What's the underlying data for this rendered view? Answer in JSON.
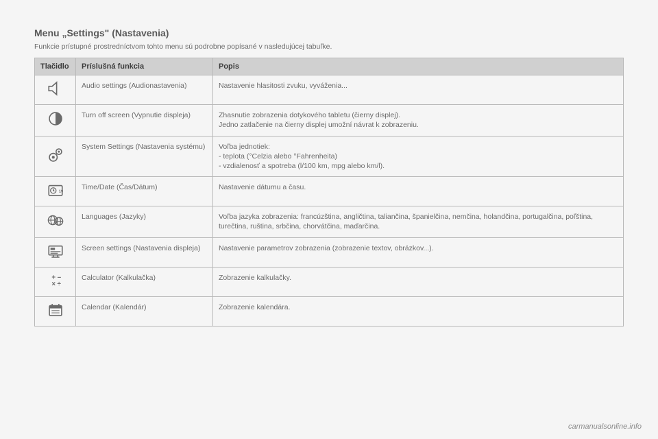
{
  "title": "Menu „Settings\" (Nastavenia)",
  "subtitle": "Funkcie prístupné prostredníctvom tohto menu sú podrobne popísané v nasledujúcej tabuľke.",
  "columns": {
    "c1": "Tlačidlo",
    "c2": "Príslušná funkcia",
    "c3": "Popis"
  },
  "rows": [
    {
      "icon": "speaker",
      "func": "Audio settings (Audionastavenia)",
      "desc": "Nastavenie hlasitosti zvuku, vyváženia..."
    },
    {
      "icon": "contrast",
      "func": "Turn off screen (Vypnutie displeja)",
      "desc": "Zhasnutie zobrazenia dotykového tabletu (čierny displej).\nJedno zatlačenie na čierny displej umožní návrat k zobrazeniu."
    },
    {
      "icon": "gears",
      "func": "System Settings (Nastavenia systému)",
      "desc_pre": "Voľba jednotiek:",
      "desc_items": [
        "teplota (°Celzia alebo °Fahrenheita)",
        "vzdialenosť a spotreba (l/100 km, mpg alebo km/l)."
      ]
    },
    {
      "icon": "time",
      "func": "Time/Date (Čas/Dátum)",
      "desc": "Nastavenie dátumu a času."
    },
    {
      "icon": "globe",
      "func": "Languages (Jazyky)",
      "desc": "Voľba jazyka zobrazenia: francúzština, angličtina, taliančina, španielčina, nemčina, holandčina, portugalčina, poľština, turečtina, ruština, srbčina, chorvátčina, maďarčina."
    },
    {
      "icon": "screen",
      "func": "Screen settings (Nastavenia displeja)",
      "desc": "Nastavenie parametrov zobrazenia (zobrazenie textov, obrázkov...)."
    },
    {
      "icon": "calculator",
      "func": "Calculator (Kalkulačka)",
      "desc": "Zobrazenie kalkulačky."
    },
    {
      "icon": "calendar",
      "func": "Calendar (Kalendár)",
      "desc": "Zobrazenie kalendára."
    }
  ],
  "footer": "carmanualsonline.info",
  "icon_color": "#6a6a6a"
}
